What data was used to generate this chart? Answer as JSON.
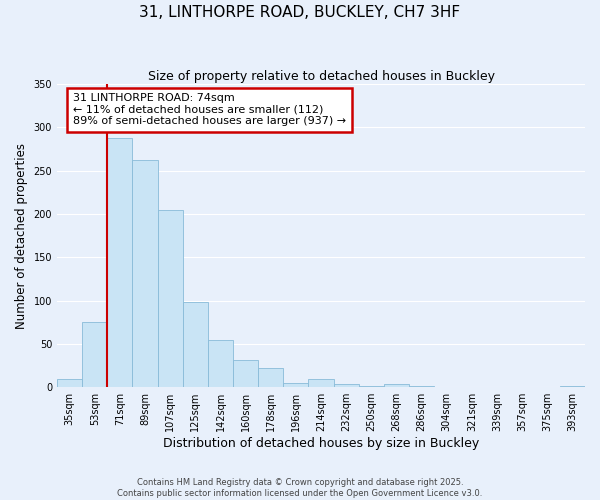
{
  "title": "31, LINTHORPE ROAD, BUCKLEY, CH7 3HF",
  "subtitle": "Size of property relative to detached houses in Buckley",
  "xlabel": "Distribution of detached houses by size in Buckley",
  "ylabel": "Number of detached properties",
  "bar_labels": [
    "35sqm",
    "53sqm",
    "71sqm",
    "89sqm",
    "107sqm",
    "125sqm",
    "142sqm",
    "160sqm",
    "178sqm",
    "196sqm",
    "214sqm",
    "232sqm",
    "250sqm",
    "268sqm",
    "286sqm",
    "304sqm",
    "321sqm",
    "339sqm",
    "357sqm",
    "375sqm",
    "393sqm"
  ],
  "bar_values": [
    10,
    75,
    288,
    262,
    205,
    98,
    55,
    31,
    22,
    5,
    9,
    4,
    1,
    4,
    1,
    0,
    0,
    0,
    0,
    0,
    1
  ],
  "bar_color": "#c9e4f5",
  "bar_edge_color": "#88bbd8",
  "bg_color": "#e8f0fb",
  "grid_color": "#ffffff",
  "marker_label": "31 LINTHORPE ROAD: 74sqm",
  "annotation_line1": "← 11% of detached houses are smaller (112)",
  "annotation_line2": "89% of semi-detached houses are larger (937) →",
  "vline_color": "#cc0000",
  "vline_x_index": 2,
  "ylim": [
    0,
    350
  ],
  "yticks": [
    0,
    50,
    100,
    150,
    200,
    250,
    300,
    350
  ],
  "footer1": "Contains HM Land Registry data © Crown copyright and database right 2025.",
  "footer2": "Contains public sector information licensed under the Open Government Licence v3.0."
}
